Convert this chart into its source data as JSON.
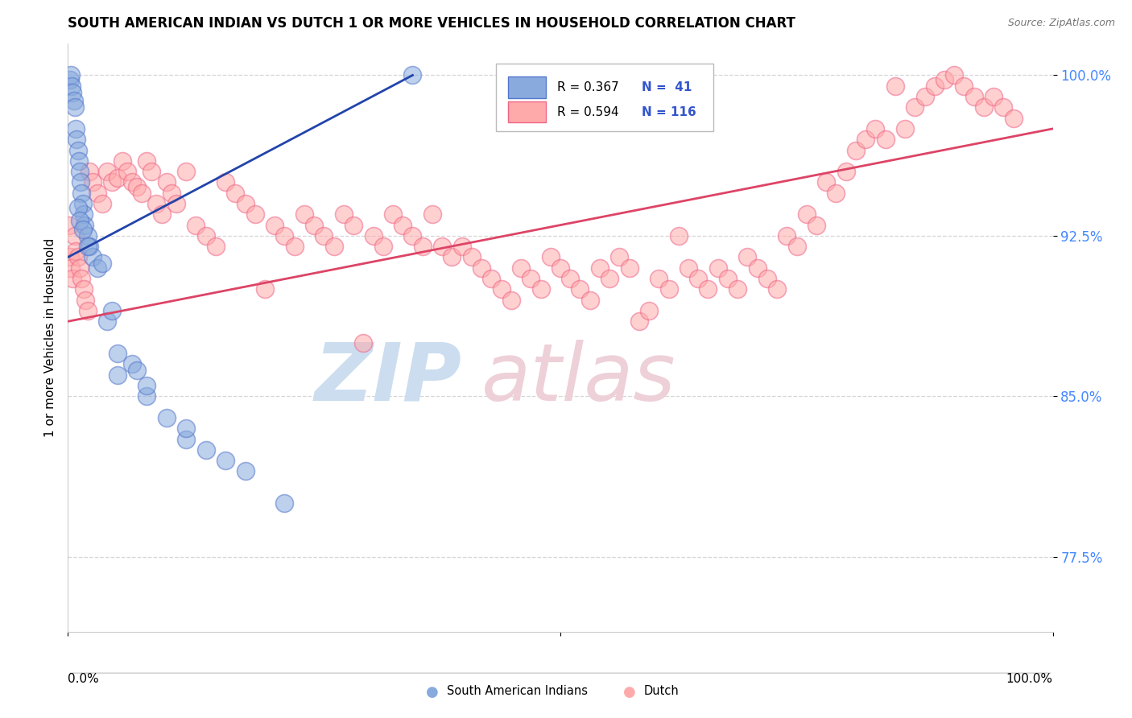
{
  "title": "SOUTH AMERICAN INDIAN VS DUTCH 1 OR MORE VEHICLES IN HOUSEHOLD CORRELATION CHART",
  "source": "Source: ZipAtlas.com",
  "ylabel": "1 or more Vehicles in Household",
  "xlim": [
    0.0,
    100.0
  ],
  "ylim": [
    74.0,
    101.5
  ],
  "yticks": [
    77.5,
    85.0,
    92.5,
    100.0
  ],
  "ytick_labels": [
    "77.5%",
    "85.0%",
    "92.5%",
    "100.0%"
  ],
  "legend_R_blue": "R = 0.367",
  "legend_N_blue": "N =  41",
  "legend_R_pink": "R = 0.594",
  "legend_N_pink": "N = 116",
  "blue_color": "#88AADD",
  "blue_edge_color": "#5577CC",
  "pink_color": "#FFAAAA",
  "pink_edge_color": "#EE6688",
  "blue_line_color": "#2244AA",
  "pink_line_color": "#DD4466",
  "watermark_zip_color": "#CCDDF0",
  "watermark_atlas_color": "#EED0D8",
  "blue_x": [
    0.2,
    0.3,
    0.4,
    0.5,
    0.6,
    0.7,
    0.8,
    0.9,
    1.0,
    1.1,
    1.2,
    1.3,
    1.4,
    1.5,
    1.6,
    1.7,
    2.0,
    2.2,
    2.5,
    3.0,
    4.0,
    5.0,
    6.5,
    8.0,
    10.0,
    12.0,
    14.0,
    16.0,
    18.0,
    22.0,
    1.0,
    1.2,
    1.5,
    2.0,
    5.0,
    8.0,
    12.0,
    7.0,
    3.5,
    4.5,
    35.0
  ],
  "blue_y": [
    99.8,
    100.0,
    99.5,
    99.2,
    98.8,
    98.5,
    97.5,
    97.0,
    96.5,
    96.0,
    95.5,
    95.0,
    94.5,
    94.0,
    93.5,
    93.0,
    92.5,
    92.0,
    91.5,
    91.0,
    88.5,
    87.0,
    86.5,
    85.0,
    84.0,
    83.0,
    82.5,
    82.0,
    81.5,
    80.0,
    93.8,
    93.2,
    92.8,
    92.0,
    86.0,
    85.5,
    83.5,
    86.2,
    91.2,
    89.0,
    100.0
  ],
  "pink_x": [
    0.1,
    0.2,
    0.3,
    0.5,
    0.7,
    0.8,
    1.0,
    1.2,
    1.4,
    1.6,
    1.8,
    2.0,
    2.2,
    2.5,
    3.0,
    3.5,
    4.0,
    4.5,
    5.0,
    5.5,
    6.0,
    6.5,
    7.0,
    7.5,
    8.0,
    8.5,
    9.0,
    9.5,
    10.0,
    10.5,
    11.0,
    12.0,
    13.0,
    14.0,
    15.0,
    16.0,
    17.0,
    18.0,
    19.0,
    20.0,
    21.0,
    22.0,
    23.0,
    24.0,
    25.0,
    26.0,
    27.0,
    28.0,
    29.0,
    30.0,
    31.0,
    32.0,
    33.0,
    34.0,
    35.0,
    36.0,
    37.0,
    38.0,
    39.0,
    40.0,
    41.0,
    42.0,
    43.0,
    44.0,
    45.0,
    46.0,
    47.0,
    48.0,
    49.0,
    50.0,
    51.0,
    52.0,
    53.0,
    54.0,
    55.0,
    56.0,
    57.0,
    58.0,
    59.0,
    60.0,
    61.0,
    62.0,
    63.0,
    64.0,
    65.0,
    66.0,
    67.0,
    68.0,
    69.0,
    70.0,
    71.0,
    72.0,
    73.0,
    74.0,
    75.0,
    76.0,
    77.0,
    78.0,
    79.0,
    80.0,
    81.0,
    82.0,
    83.0,
    84.0,
    85.0,
    86.0,
    87.0,
    88.0,
    89.0,
    90.0,
    91.0,
    92.0,
    93.0,
    94.0,
    95.0,
    96.0
  ],
  "pink_y": [
    93.0,
    91.5,
    91.0,
    90.5,
    92.5,
    91.8,
    91.5,
    91.0,
    90.5,
    90.0,
    89.5,
    89.0,
    95.5,
    95.0,
    94.5,
    94.0,
    95.5,
    95.0,
    95.2,
    96.0,
    95.5,
    95.0,
    94.8,
    94.5,
    96.0,
    95.5,
    94.0,
    93.5,
    95.0,
    94.5,
    94.0,
    95.5,
    93.0,
    92.5,
    92.0,
    95.0,
    94.5,
    94.0,
    93.5,
    90.0,
    93.0,
    92.5,
    92.0,
    93.5,
    93.0,
    92.5,
    92.0,
    93.5,
    93.0,
    87.5,
    92.5,
    92.0,
    93.5,
    93.0,
    92.5,
    92.0,
    93.5,
    92.0,
    91.5,
    92.0,
    91.5,
    91.0,
    90.5,
    90.0,
    89.5,
    91.0,
    90.5,
    90.0,
    91.5,
    91.0,
    90.5,
    90.0,
    89.5,
    91.0,
    90.5,
    91.5,
    91.0,
    88.5,
    89.0,
    90.5,
    90.0,
    92.5,
    91.0,
    90.5,
    90.0,
    91.0,
    90.5,
    90.0,
    91.5,
    91.0,
    90.5,
    90.0,
    92.5,
    92.0,
    93.5,
    93.0,
    95.0,
    94.5,
    95.5,
    96.5,
    97.0,
    97.5,
    97.0,
    99.5,
    97.5,
    98.5,
    99.0,
    99.5,
    99.8,
    100.0,
    99.5,
    99.0,
    98.5,
    99.0,
    98.5,
    98.0
  ]
}
